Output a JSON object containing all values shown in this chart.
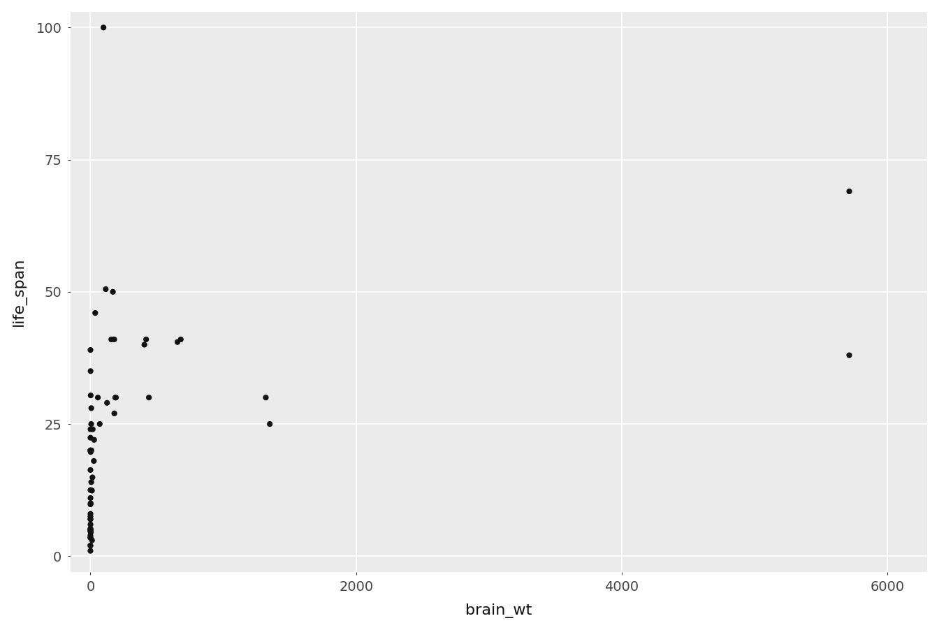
{
  "brain_wt": [
    0.14,
    1.0,
    0.005,
    0.06,
    1.0,
    3.5,
    2.0,
    1.7,
    0.175,
    0.055,
    0.9,
    0.07,
    98.2,
    6.3,
    180.0,
    440.0,
    1320.0,
    169.0,
    179.0,
    6.8,
    406.0,
    0.023,
    14.9,
    0.3,
    0.33,
    25.6,
    0.1,
    0.005,
    0.6,
    0.01,
    0.012,
    419.0,
    157.0,
    115.0,
    5712.0,
    0.12,
    0.023,
    0.4,
    1.9,
    3.0,
    0.25,
    12.1,
    28.0,
    56.0,
    6.3,
    11.4,
    125.0,
    0.3,
    0.07,
    655.0,
    680.0,
    5712.0,
    1350.0,
    70.0,
    187.0,
    192.0,
    0.075,
    0.048,
    0.35,
    36.0,
    17.0,
    0.0023,
    0.3,
    5.5,
    0.14
  ],
  "life_span": [
    20.0,
    5.0,
    3.9,
    39.0,
    4.7,
    19.9,
    30.4,
    19.7,
    5.2,
    3.5,
    35.0,
    16.3,
    100.0,
    14.0,
    27.0,
    30.0,
    30.0,
    50.0,
    41.0,
    20.0,
    40.0,
    4.7,
    14.9,
    8.0,
    5.0,
    18.0,
    7.0,
    2.0,
    24.0,
    3.5,
    2.0,
    41.0,
    41.0,
    50.5,
    69.0,
    9.8,
    22.4,
    6.0,
    10.0,
    4.5,
    7.0,
    3.0,
    22.0,
    30.0,
    28.0,
    12.4,
    29.0,
    20.0,
    20.0,
    40.5,
    41.0,
    38.0,
    25.0,
    25.0,
    30.0,
    30.0,
    7.5,
    5.0,
    11.0,
    46.0,
    24.0,
    1.0,
    5.0,
    25.0,
    12.5
  ],
  "xlabel": "brain_wt",
  "ylabel": "life_span",
  "xlim": [
    -150,
    6300
  ],
  "ylim": [
    -3,
    103
  ],
  "xticks": [
    0,
    2000,
    4000,
    6000
  ],
  "yticks": [
    0,
    25,
    50,
    75,
    100
  ],
  "bg_color": "#EBEBEB",
  "grid_color": "#FFFFFF",
  "point_color": "#111111",
  "point_size": 35,
  "tick_fontsize": 14,
  "label_fontsize": 16,
  "tick_color": "#444444"
}
